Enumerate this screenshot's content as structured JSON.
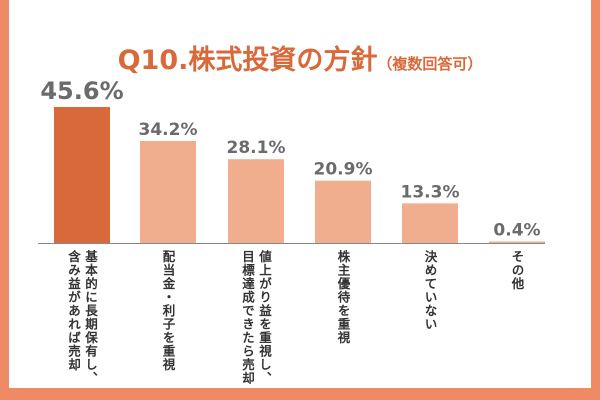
{
  "chart_data": {
    "type": "bar",
    "title": "Q10.株式投資の方針",
    "subtitle": "（複数回答可）",
    "categories": [
      "基本的に長期保有し、\n含み益があれば売却",
      "配当金・利子を重視",
      "値上がり益を重視し、\n目標達成できたら売却",
      "株主優待を重視",
      "決めていない",
      "その他"
    ],
    "values": [
      45.6,
      34.2,
      28.1,
      20.9,
      13.3,
      0.4
    ],
    "value_labels": [
      "45.6%",
      "34.2%",
      "28.1%",
      "20.9%",
      "13.3%",
      "0.4%"
    ],
    "unit": "%",
    "ylim": [
      0,
      46
    ],
    "grid": false,
    "colors": {
      "highlight": "#d9693a",
      "bar": "#f0ae8f",
      "frame": "#ee8a64",
      "value_text": "#6b6b6b",
      "axis": "#888888"
    }
  }
}
